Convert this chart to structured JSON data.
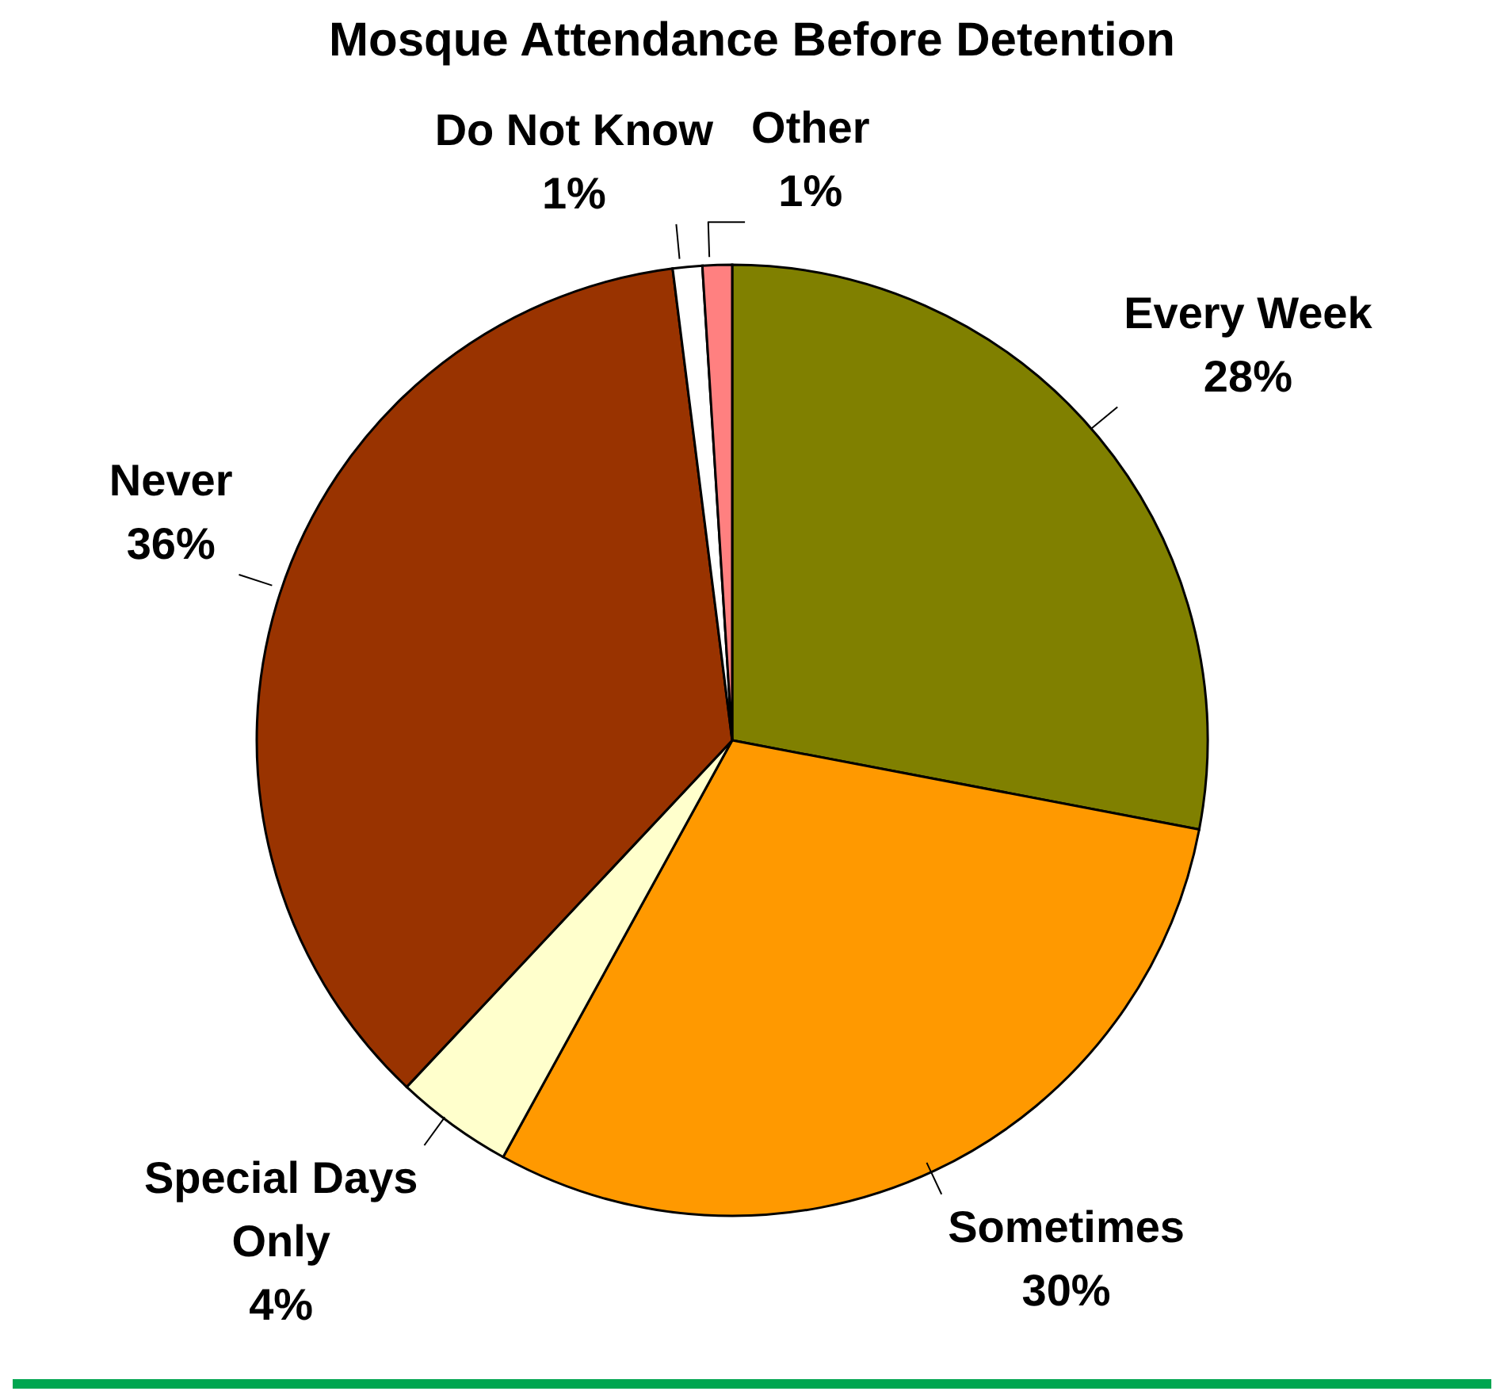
{
  "chart_data": {
    "type": "pie",
    "title": "Mosque Attendance Before Detention",
    "categories": [
      "Every Week",
      "Sometimes",
      "Special Days Only",
      "Never",
      "Do Not Know",
      "Other"
    ],
    "values": [
      28,
      30,
      4,
      36,
      1,
      1
    ],
    "value_labels": [
      "28%",
      "30%",
      "4%",
      "36%",
      "1%",
      "1%"
    ],
    "colors": [
      "#808000",
      "#ff9900",
      "#ffffcc",
      "#993300",
      "#ffffff",
      "#ff8080"
    ]
  }
}
